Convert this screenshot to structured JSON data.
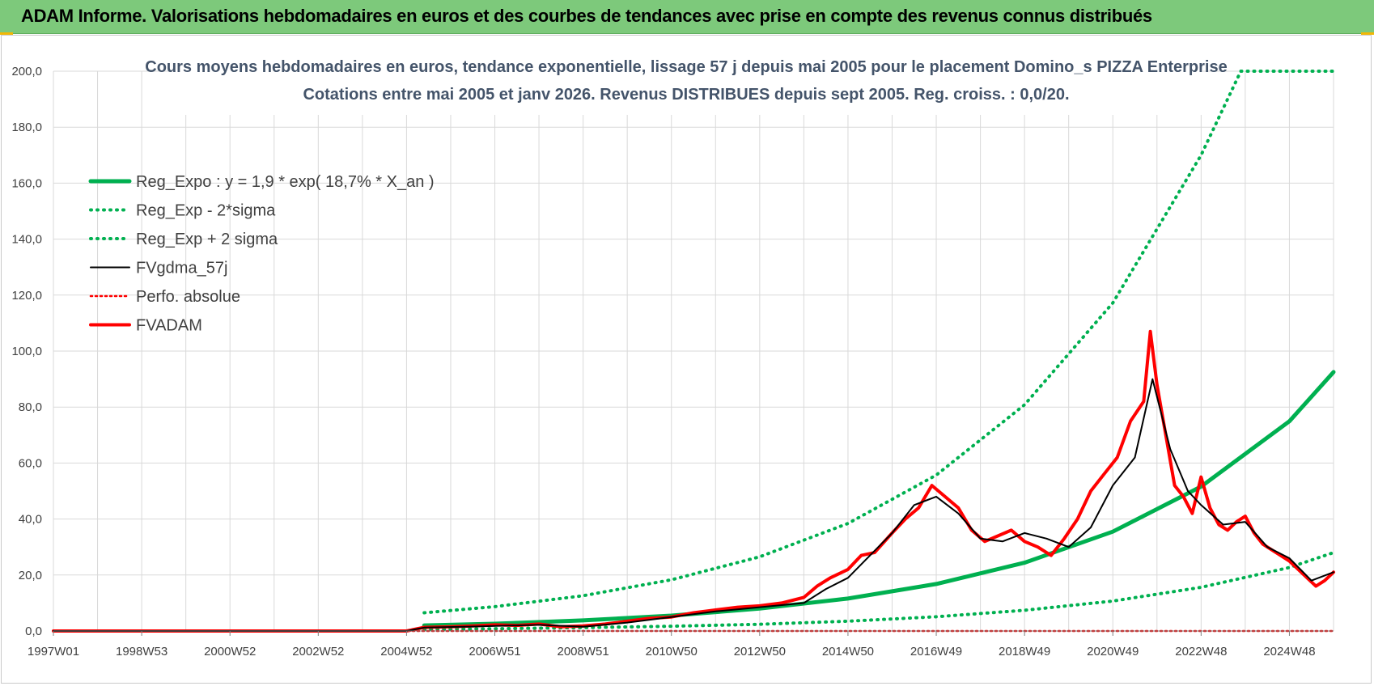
{
  "header": {
    "title": "ADAM Informe. Valorisations hebdomadaires en euros et des courbes de tendances avec prise en compte des revenus connus distribués"
  },
  "colors": {
    "header_bg": "#7dc97b",
    "reg_green": "#00b050",
    "fv_black": "#000000",
    "fvadam_red": "#ff0000",
    "grid": "#d9d9d9",
    "title_color": "#44546a"
  },
  "chart_data": {
    "type": "line",
    "title": "Cours moyens hebdomadaires en euros, tendance exponentielle, lissage 57 j depuis mai 2005 pour le placement Domino_s PIZZA Enterprise",
    "subtitle": "Cotations entre mai 2005 et janv 2026. Revenus DISTRIBUES depuis sept 2005. Reg. croiss. : 0,0/20.",
    "xlabel": "",
    "ylabel": "",
    "ylim": [
      0,
      200
    ],
    "xlim": [
      1997.0,
      2026.0
    ],
    "yticks": [
      "0,0",
      "20,0",
      "40,0",
      "60,0",
      "80,0",
      "100,0",
      "120,0",
      "140,0",
      "160,0",
      "180,0",
      "200,0"
    ],
    "xticks": [
      {
        "label": "1997W01",
        "x": 1997.0
      },
      {
        "label": "1998W53",
        "x": 1999.0
      },
      {
        "label": "2000W52",
        "x": 2001.0
      },
      {
        "label": "2002W52",
        "x": 2003.0
      },
      {
        "label": "2004W52",
        "x": 2005.0
      },
      {
        "label": "2006W51",
        "x": 2007.0
      },
      {
        "label": "2008W51",
        "x": 2009.0
      },
      {
        "label": "2010W50",
        "x": 2011.0
      },
      {
        "label": "2012W50",
        "x": 2013.0
      },
      {
        "label": "2014W50",
        "x": 2015.0
      },
      {
        "label": "2016W49",
        "x": 2017.0
      },
      {
        "label": "2018W49",
        "x": 2019.0
      },
      {
        "label": "2020W49",
        "x": 2021.0
      },
      {
        "label": "2022W48",
        "x": 2023.0
      },
      {
        "label": "2024W48",
        "x": 2025.0
      }
    ],
    "grid": true,
    "legend_position": "top-left",
    "series": [
      {
        "name": "Reg_Expo : y = 1,9 * exp( 18,7% *  X_an )",
        "style": "solid",
        "color": "#00b050",
        "x": [
          2005.4,
          2007,
          2009,
          2011,
          2013,
          2015,
          2017,
          2019,
          2021,
          2023,
          2025,
          2026.0
        ],
        "y": [
          2.0,
          2.6,
          3.8,
          5.5,
          8.0,
          11.6,
          16.8,
          24.4,
          35.5,
          51.6,
          74.9,
          92.5
        ]
      },
      {
        "name": "Reg_Exp - 2*sigma",
        "style": "dotted",
        "color": "#00b050",
        "x": [
          2005.4,
          2007,
          2009,
          2011,
          2013,
          2015,
          2017,
          2019,
          2021,
          2023,
          2025,
          2026.0
        ],
        "y": [
          0.6,
          0.8,
          1.2,
          1.7,
          2.4,
          3.5,
          5.1,
          7.4,
          10.7,
          15.6,
          22.7,
          28.0
        ]
      },
      {
        "name": "Reg_Exp + 2 sigma",
        "style": "dotted",
        "color": "#00b050",
        "x": [
          2005.4,
          2007,
          2009,
          2011,
          2013,
          2015,
          2017,
          2019,
          2021,
          2023,
          2023.9,
          2025,
          2026.0
        ],
        "y": [
          6.5,
          8.7,
          12.6,
          18.3,
          26.5,
          38.4,
          55.7,
          80.8,
          117.2,
          170.0,
          200.0,
          200.0,
          200.0
        ]
      },
      {
        "name": "FVgdma_57j",
        "style": "solid",
        "color": "#000000",
        "x": [
          1997.0,
          2005.0,
          2005.4,
          2006.5,
          2008,
          2009,
          2010,
          2011,
          2012,
          2013,
          2014,
          2014.5,
          2015,
          2015.5,
          2016,
          2016.5,
          2017,
          2017.5,
          2018,
          2018.5,
          2019,
          2019.5,
          2020,
          2020.5,
          2021,
          2021.5,
          2021.9,
          2022.3,
          2022.7,
          2023,
          2023.5,
          2024,
          2024.5,
          2025,
          2025.5,
          2026.0
        ],
        "y": [
          0.0,
          0.0,
          1.2,
          1.6,
          2.2,
          1.5,
          3.0,
          5.0,
          7.0,
          8.5,
          10.0,
          15.0,
          19.0,
          27.0,
          35.0,
          45.0,
          48.0,
          42.0,
          33.0,
          32.0,
          35.0,
          33.0,
          30.0,
          37.0,
          52.0,
          62.0,
          90.0,
          65.0,
          50.0,
          45.0,
          38.0,
          39.0,
          30.0,
          26.0,
          18.0,
          21.0
        ]
      },
      {
        "name": "Perfo. absolue",
        "style": "dotted",
        "color": "#ff0000",
        "x": [
          1997.0,
          2026.0
        ],
        "y": [
          0.0,
          0.0
        ]
      },
      {
        "name": "FVADAM",
        "style": "solid",
        "color": "#ff0000",
        "x": [
          1997.0,
          2005.0,
          2005.4,
          2006,
          2006.5,
          2007,
          2007.5,
          2008,
          2008.5,
          2009,
          2009.5,
          2010,
          2010.5,
          2011,
          2011.5,
          2012,
          2012.5,
          2013,
          2013.5,
          2014,
          2014.3,
          2014.6,
          2015,
          2015.3,
          2015.6,
          2016,
          2016.3,
          2016.6,
          2016.9,
          2017.2,
          2017.5,
          2017.8,
          2018.1,
          2018.4,
          2018.7,
          2019,
          2019.3,
          2019.6,
          2019.9,
          2020.2,
          2020.5,
          2020.8,
          2021.1,
          2021.4,
          2021.7,
          2021.85,
          2022.0,
          2022.2,
          2022.4,
          2022.6,
          2022.8,
          2023.0,
          2023.2,
          2023.4,
          2023.6,
          2023.8,
          2024.0,
          2024.2,
          2024.4,
          2024.6,
          2024.8,
          2025.0,
          2025.2,
          2025.4,
          2025.6,
          2025.8,
          2026.0
        ],
        "y": [
          0.0,
          0.0,
          1.3,
          1.5,
          1.8,
          2.2,
          2.0,
          2.5,
          1.5,
          1.8,
          2.5,
          3.5,
          4.5,
          5.0,
          6.5,
          7.5,
          8.5,
          9.0,
          10.0,
          12.0,
          16.0,
          19.0,
          22.0,
          27.0,
          28.0,
          35.0,
          40.0,
          44.0,
          52.0,
          48.0,
          44.0,
          36.0,
          32.0,
          34.0,
          36.0,
          32.0,
          30.0,
          27.0,
          33.0,
          40.0,
          50.0,
          56.0,
          62.0,
          75.0,
          82.0,
          107.0,
          88.0,
          70.0,
          52.0,
          48.0,
          42.0,
          55.0,
          44.0,
          38.0,
          36.0,
          39.0,
          41.0,
          35.0,
          31.0,
          29.0,
          27.0,
          25.0,
          22.0,
          19.0,
          16.0,
          18.0,
          21.0
        ]
      }
    ]
  }
}
